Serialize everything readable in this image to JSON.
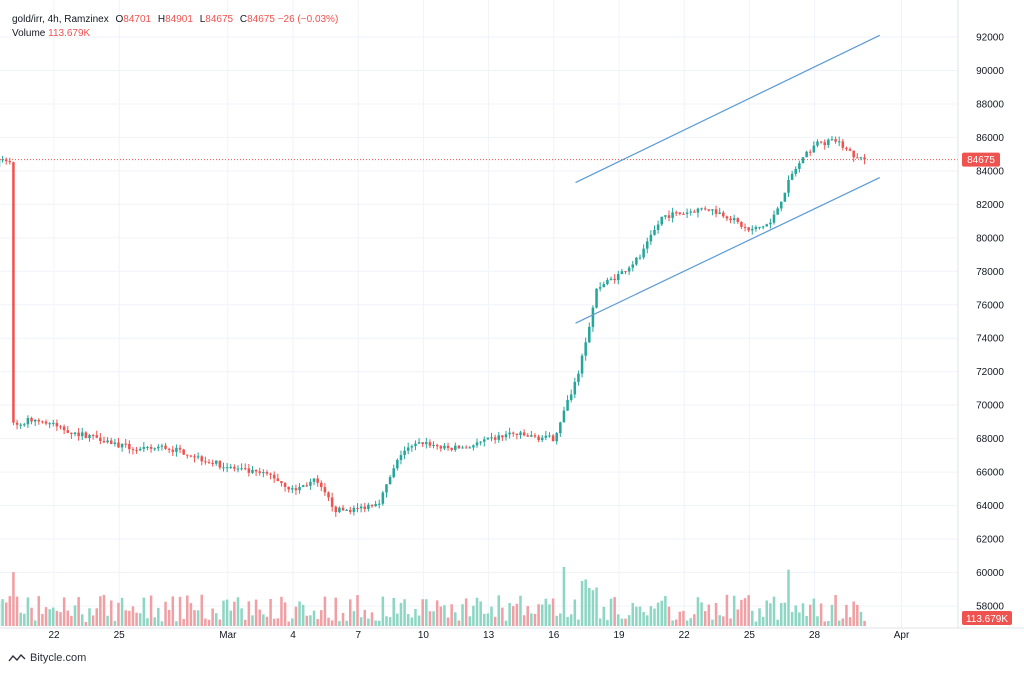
{
  "header": {
    "symbol": "gold/irr, 4h, Ramzinex",
    "open_label": "O",
    "open": "84701",
    "high_label": "H",
    "high": "84901",
    "low_label": "L",
    "low": "84675",
    "close_label": "C",
    "close": "84675",
    "change": "−26 (−0.03%)",
    "volume_label": "Volume",
    "volume": "113.679K"
  },
  "badges": {
    "last_price": "84675",
    "last_volume": "113.679K"
  },
  "brand": {
    "name": "Bitycle.com"
  },
  "colors": {
    "up": "#26a69a",
    "down": "#ef5350",
    "up_volume": "#8ed6c4",
    "down_volume": "#f0a0a4",
    "channel": "#5b9bd5",
    "grid": "#f0f3fa",
    "text": "#131722"
  },
  "chart_data": {
    "type": "candlestick",
    "interval": "4h",
    "ylim": [
      57000,
      93000
    ],
    "y_ticks": [
      58000,
      60000,
      62000,
      64000,
      66000,
      68000,
      70000,
      72000,
      74000,
      76000,
      78000,
      80000,
      82000,
      84000,
      86000,
      88000,
      90000,
      92000
    ],
    "x_ticks": [
      {
        "label": "22",
        "date": "2024-02-22"
      },
      {
        "label": "25",
        "date": "2024-02-25"
      },
      {
        "label": "Mar",
        "date": "2024-03-01"
      },
      {
        "label": "4",
        "date": "2024-03-04"
      },
      {
        "label": "7",
        "date": "2024-03-07"
      },
      {
        "label": "10",
        "date": "2024-03-10"
      },
      {
        "label": "13",
        "date": "2024-03-13"
      },
      {
        "label": "16",
        "date": "2024-03-16"
      },
      {
        "label": "19",
        "date": "2024-03-19"
      },
      {
        "label": "22",
        "date": "2024-03-22"
      },
      {
        "label": "25",
        "date": "2024-03-25"
      },
      {
        "label": "28",
        "date": "2024-03-28"
      },
      {
        "label": "Apr",
        "date": "2024-04-01"
      }
    ],
    "last_price": 84675,
    "close_anchors": [
      [
        "2024-02-20",
        68600
      ],
      [
        "2024-02-21",
        69200
      ],
      [
        "2024-02-22",
        68800
      ],
      [
        "2024-02-23",
        68300
      ],
      [
        "2024-02-24",
        68100
      ],
      [
        "2024-02-25",
        67600
      ],
      [
        "2024-02-26",
        67300
      ],
      [
        "2024-02-27",
        67500
      ],
      [
        "2024-02-28",
        67200
      ],
      [
        "2024-02-29",
        66700
      ],
      [
        "2024-03-01",
        66300
      ],
      [
        "2024-03-02",
        66000
      ],
      [
        "2024-03-03",
        65800
      ],
      [
        "2024-03-04",
        64900
      ],
      [
        "2024-03-05",
        65500
      ],
      [
        "2024-03-06",
        63700
      ],
      [
        "2024-03-07",
        63800
      ],
      [
        "2024-03-08",
        64300
      ],
      [
        "2024-03-09",
        67200
      ],
      [
        "2024-03-10",
        67800
      ],
      [
        "2024-03-11",
        67400
      ],
      [
        "2024-03-12",
        67500
      ],
      [
        "2024-03-13",
        67900
      ],
      [
        "2024-03-14",
        68300
      ],
      [
        "2024-03-15",
        68100
      ],
      [
        "2024-03-16",
        68000
      ],
      [
        "2024-03-17",
        71500
      ],
      [
        "2024-03-18",
        77000
      ],
      [
        "2024-03-19",
        77800
      ],
      [
        "2024-03-20",
        78900
      ],
      [
        "2024-03-21",
        81300
      ],
      [
        "2024-03-22",
        81500
      ],
      [
        "2024-03-23",
        81800
      ],
      [
        "2024-03-24",
        81300
      ],
      [
        "2024-03-25",
        80400
      ],
      [
        "2024-03-26",
        80900
      ],
      [
        "2024-03-27",
        83900
      ],
      [
        "2024-03-28",
        85600
      ],
      [
        "2024-03-29",
        85800
      ],
      [
        "2024-03-30",
        84675
      ]
    ],
    "channel": {
      "upper": [
        [
          "2024-03-17",
          83300
        ],
        [
          "2024-03-31",
          92100
        ]
      ],
      "lower": [
        [
          "2024-03-17",
          74900
        ],
        [
          "2024-03-31",
          83600
        ]
      ]
    }
  }
}
